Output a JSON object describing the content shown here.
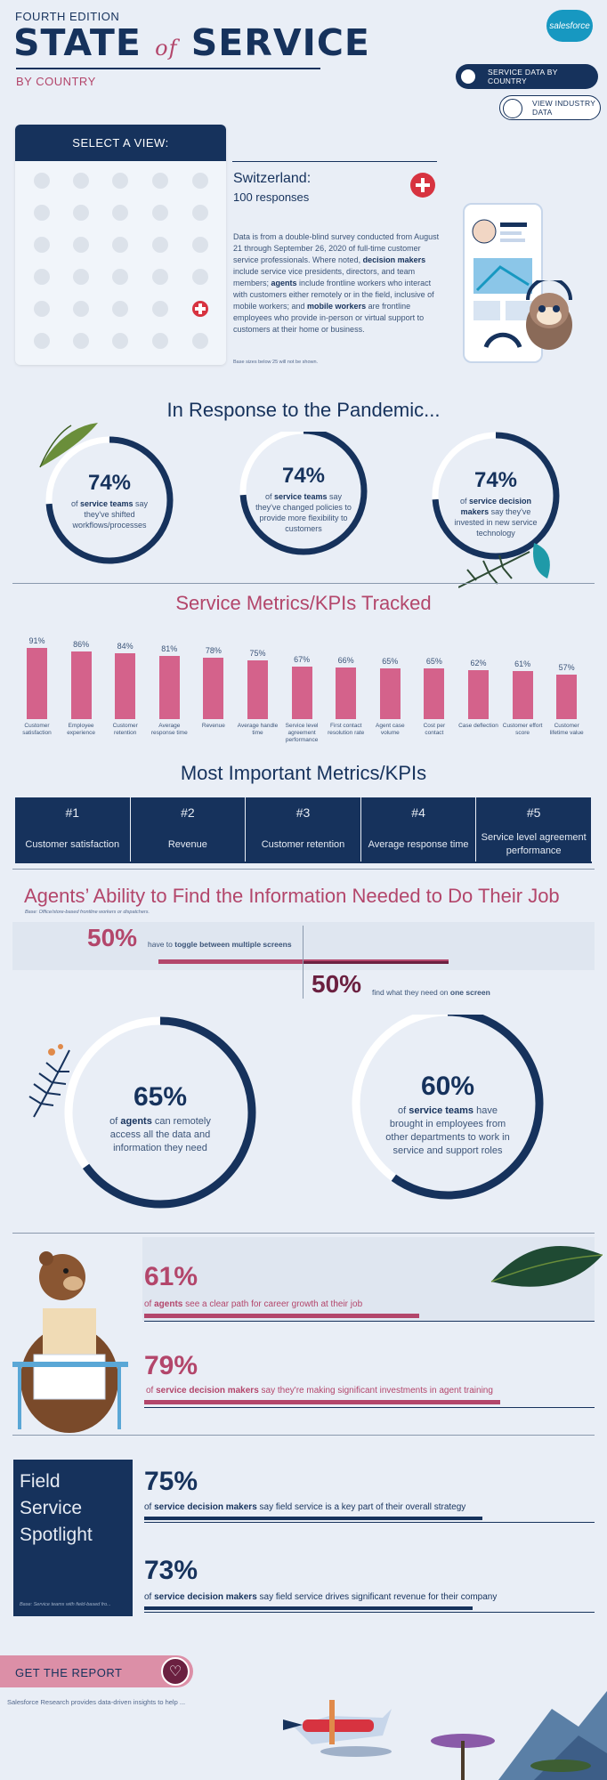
{
  "header": {
    "edition": "FOURTH EDITION",
    "title_part1": "STATE",
    "title_of": "of",
    "title_part2": "SERVICE",
    "subtitle": "BY COUNTRY",
    "logo": "salesforce",
    "btn_country": "SERVICE DATA BY COUNTRY",
    "btn_industry": "VIEW INDUSTRY DATA"
  },
  "selector": {
    "header": "SELECT A VIEW:",
    "active_flag": "switzerland-flag-icon"
  },
  "country": {
    "name": "Switzerland:",
    "responses": "100 responses",
    "intro_1": "Data is from a double-blind survey conducted from August 21 through September 26, 2020 of full-time customer service professionals. Where noted, ",
    "intro_b1": "decision makers",
    "intro_2": " include service vice presidents, directors, and team members; ",
    "intro_b2": "agents",
    "intro_3": " include frontline workers who interact with customers either remotely or in the field, inclusive of mobile workers; and ",
    "intro_b3": "mobile workers",
    "intro_4": " are frontline employees who provide in-person or virtual support to customers at their home or business.",
    "base_note": "Base sizes below 25 will not be shown."
  },
  "pandemic": {
    "title": "In Response to the Pandemic...",
    "items": [
      {
        "pct": "74%",
        "pre": "of ",
        "bold": "service teams",
        "post": " say they've shifted workflows/processes",
        "fraction": 0.74
      },
      {
        "pct": "74%",
        "pre": "of ",
        "bold": "service teams",
        "post": " say they've changed policies to provide more flexibility to customers",
        "fraction": 0.74
      },
      {
        "pct": "74%",
        "pre": "of ",
        "bold": "service decision makers",
        "post": " say they've invested in new service technology",
        "fraction": 0.74
      }
    ]
  },
  "kpi_section": {
    "title": "Service Metrics/KPIs Tracked"
  },
  "chart_data": {
    "type": "bar",
    "categories": [
      "Customer satisfaction",
      "Employee experience",
      "Customer retention",
      "Average response time",
      "Revenue",
      "Average handle time",
      "Service level agreement performance",
      "First contact resolution rate",
      "Agent case volume",
      "Cost per contact",
      "Case deflection",
      "Customer effort score",
      "Customer lifetime value"
    ],
    "values": [
      91,
      86,
      84,
      81,
      78,
      75,
      67,
      66,
      65,
      65,
      62,
      61,
      57
    ],
    "labels": [
      "91%",
      "86%",
      "84%",
      "81%",
      "78%",
      "75%",
      "67%",
      "66%",
      "65%",
      "65%",
      "62%",
      "61%",
      "57%"
    ],
    "ylim": [
      0,
      100
    ],
    "bar_color": "#d4628b"
  },
  "top_metrics": {
    "title": "Most Important Metrics/KPIs",
    "items": [
      {
        "rank": "#1",
        "name": "Customer satisfaction"
      },
      {
        "rank": "#2",
        "name": "Revenue"
      },
      {
        "rank": "#3",
        "name": "Customer retention"
      },
      {
        "rank": "#4",
        "name": "Average response time"
      },
      {
        "rank": "#5",
        "name": "Service level agreement performance"
      }
    ]
  },
  "agents": {
    "title": "Agents’ Ability to Find the Information Needed to Do Their Job",
    "base": "Base: Office/store-based frontline workers or dispatchers.",
    "toggle_pct": "50%",
    "toggle_pre": "have to ",
    "toggle_bold": "toggle between multiple screens",
    "one_pct": "50%",
    "one_pre": "find what they need on ",
    "one_bold": "one screen",
    "ring1": {
      "pct": "65%",
      "pre": "of ",
      "bold": "agents",
      "post": " can remotely access all the data and information they need",
      "fraction": 0.65
    },
    "ring2": {
      "pct": "60%",
      "pre": "of ",
      "bold": "service teams",
      "post": " have brought in employees from other departments to work in service and support roles",
      "fraction": 0.6
    }
  },
  "career": {
    "item1": {
      "pct": "61%",
      "pre": "of ",
      "bold": "agents",
      "post": " see a clear path for career growth at their job",
      "fraction": 0.61
    },
    "item2": {
      "pct": "79%",
      "pre": "of ",
      "bold": "service decision makers",
      "post": " say they're making significant investments in agent training",
      "fraction": 0.79
    }
  },
  "field_service": {
    "title_1": "Field",
    "title_2": "Service",
    "title_3": "Spotlight",
    "base": "Base: Service teams with field-based fro...",
    "item1": {
      "pct": "75%",
      "pre": "of ",
      "bold": "service decision makers",
      "post": " say field service is a key part of their overall strategy",
      "fraction": 0.75
    },
    "item2": {
      "pct": "73%",
      "pre": "of ",
      "bold": "service decision makers",
      "post": " say field service drives significant revenue for their company",
      "fraction": 0.73
    }
  },
  "footer": {
    "report_label": "GET THE REPORT",
    "report_icon": "heart-icon",
    "text": "Salesforce Research provides data-driven insights to help ..."
  },
  "colors": {
    "navy": "#16325c",
    "rose": "#b3466b",
    "bar": "#d4628b",
    "plum": "#6b2040"
  }
}
